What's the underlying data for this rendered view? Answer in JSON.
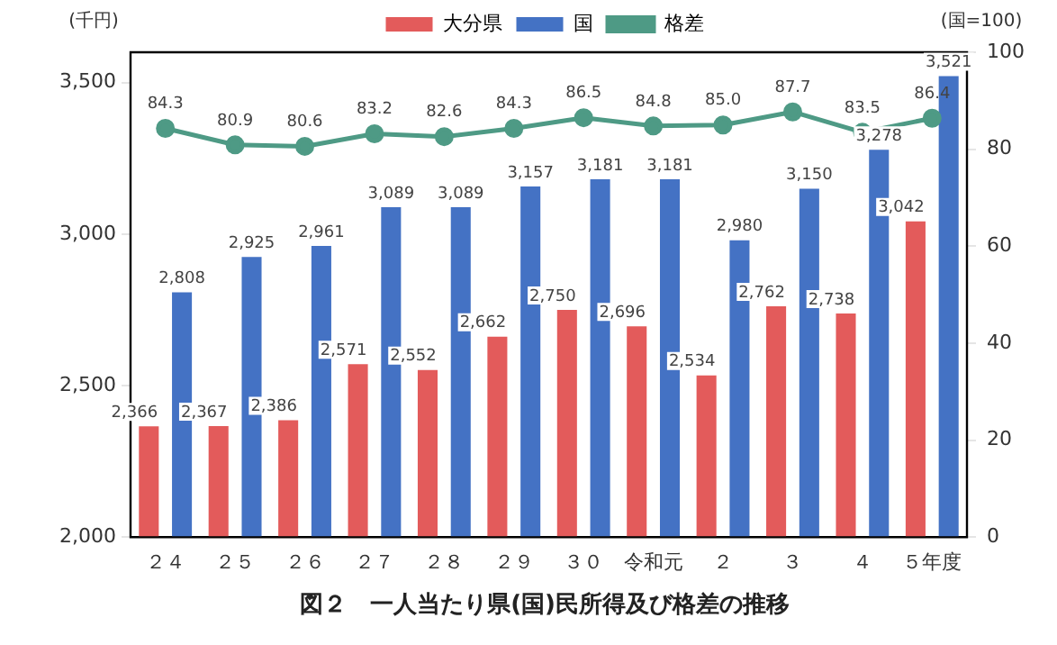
{
  "chart_data": {
    "type": "bar",
    "title": "図２　一人当たり県(国)民所得及び格差の推移",
    "ylabel": "(千円)",
    "y2label": "(国=100)",
    "categories": [
      "２４",
      "２５",
      "２６",
      "２７",
      "２８",
      "２９",
      "３０",
      "令和元",
      "２",
      "３",
      "４",
      "５年度"
    ],
    "series": [
      {
        "name": "大分県",
        "color": "#e35b5b",
        "values": [
          2366,
          2367,
          2386,
          2571,
          2552,
          2662,
          2750,
          2696,
          2534,
          2762,
          2738,
          3042
        ],
        "value_labels": [
          "2,366",
          "2,367",
          "2,386",
          "2,571",
          "2,552",
          "2,662",
          "2,750",
          "2,696",
          "2,534",
          "2,762",
          "2,738",
          "3,042"
        ]
      },
      {
        "name": "国",
        "color": "#4472c4",
        "values": [
          2808,
          2925,
          2961,
          3089,
          3089,
          3157,
          3181,
          3181,
          2980,
          3150,
          3278,
          3521
        ],
        "value_labels": [
          "2,808",
          "2,925",
          "2,961",
          "3,089",
          "3,089",
          "3,157",
          "3,181",
          "3,181",
          "2,980",
          "3,150",
          "3,278",
          "3,521"
        ]
      },
      {
        "name": "格差",
        "type": "line",
        "axis": "y2",
        "color": "#4e9a85",
        "marker": "circle",
        "values": [
          84.3,
          80.9,
          80.6,
          83.2,
          82.6,
          84.3,
          86.5,
          84.8,
          85.0,
          87.7,
          83.5,
          86.4
        ],
        "value_labels": [
          "84.3",
          "80.9",
          "80.6",
          "83.2",
          "82.6",
          "84.3",
          "86.5",
          "84.8",
          "85.0",
          "87.7",
          "83.5",
          "86.4"
        ]
      }
    ],
    "ylim": [
      2000,
      3600
    ],
    "yticks": [
      {
        "value": 2000,
        "label": "2,000"
      },
      {
        "value": 2500,
        "label": "2,500"
      },
      {
        "value": 3000,
        "label": "3,000"
      },
      {
        "value": 3500,
        "label": "3,500"
      }
    ],
    "y2lim": [
      0,
      100
    ],
    "y2ticks": [
      0,
      20,
      40,
      60,
      80,
      100
    ],
    "grid": false,
    "legend": "top"
  }
}
